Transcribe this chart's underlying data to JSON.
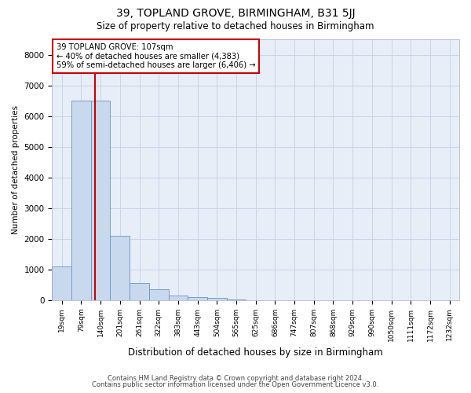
{
  "title": "39, TOPLAND GROVE, BIRMINGHAM, B31 5JJ",
  "subtitle": "Size of property relative to detached houses in Birmingham",
  "xlabel": "Distribution of detached houses by size in Birmingham",
  "ylabel": "Number of detached properties",
  "footnote1": "Contains HM Land Registry data © Crown copyright and database right 2024.",
  "footnote2": "Contains public sector information licensed under the Open Government Licence v3.0.",
  "annotation_title": "39 TOPLAND GROVE: 107sqm",
  "annotation_line1": "← 40% of detached houses are smaller (4,383)",
  "annotation_line2": "59% of semi-detached houses are larger (6,406) →",
  "bar_color": "#c8d9ee",
  "bar_edge_color": "#6496c8",
  "redline_color": "#cc0000",
  "categories": [
    "19sqm",
    "79sqm",
    "140sqm",
    "201sqm",
    "261sqm",
    "322sqm",
    "383sqm",
    "443sqm",
    "504sqm",
    "565sqm",
    "625sqm",
    "686sqm",
    "747sqm",
    "807sqm",
    "868sqm",
    "929sqm",
    "990sqm",
    "1050sqm",
    "1111sqm",
    "1172sqm",
    "1232sqm"
  ],
  "values": [
    1100,
    6500,
    6500,
    2100,
    550,
    350,
    150,
    90,
    60,
    30,
    0,
    0,
    0,
    0,
    0,
    0,
    0,
    0,
    0,
    0,
    0
  ],
  "ylim": [
    0,
    8500
  ],
  "yticks": [
    0,
    1000,
    2000,
    3000,
    4000,
    5000,
    6000,
    7000,
    8000
  ],
  "grid_color": "#c8d4e8",
  "background_color": "#e8eef8",
  "redline_x": 1.73
}
